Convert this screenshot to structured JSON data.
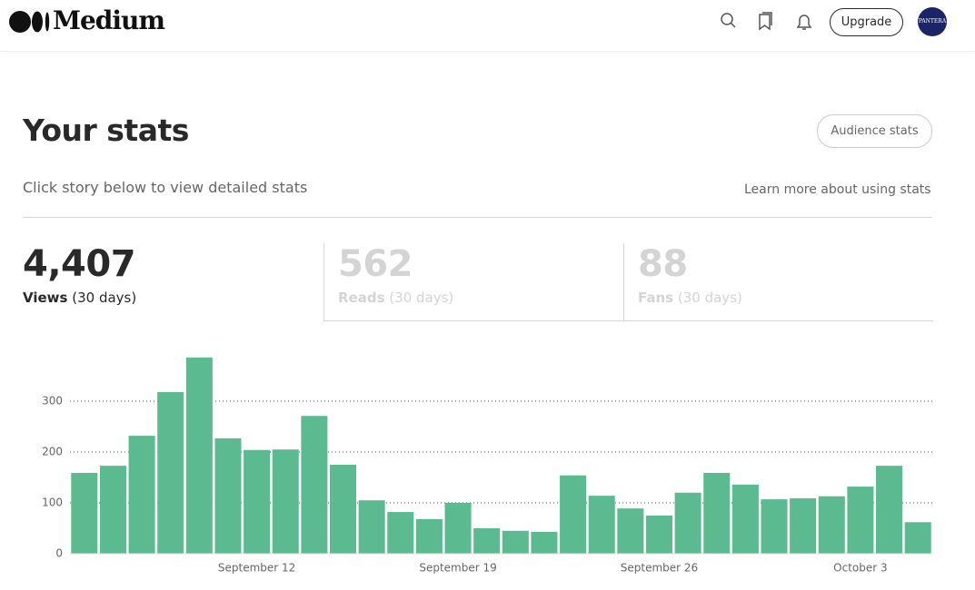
{
  "header": {
    "logo": "Medium",
    "button": "Upgrade",
    "avatar": "PANTERA"
  },
  "title": "Your stats",
  "audience_button": "Audience stats",
  "subtitle": "Click story below to view detailed stats",
  "learn_link": "Learn more about using stats",
  "stats": [
    {
      "value": "4,407",
      "label": "Views",
      "period": "(30 days)"
    },
    {
      "value": "562",
      "label": "Reads",
      "period": "(30 days)"
    },
    {
      "value": "88",
      "label": "Fans",
      "period": "(30 days)"
    }
  ],
  "chart_data": {
    "type": "bar",
    "categories": [
      null,
      null,
      null,
      null,
      null,
      null,
      "September 12",
      null,
      null,
      null,
      null,
      null,
      null,
      "September 19",
      null,
      null,
      null,
      null,
      null,
      null,
      "September 26",
      null,
      null,
      null,
      null,
      null,
      null,
      "October 3",
      null,
      null
    ],
    "values": [
      159,
      173,
      232,
      318,
      386,
      227,
      204,
      205,
      271,
      175,
      105,
      82,
      68,
      100,
      50,
      45,
      43,
      154,
      114,
      89,
      75,
      120,
      159,
      136,
      107,
      109,
      113,
      132,
      173,
      62
    ],
    "color": "#5bba8f",
    "ylim": [
      0,
      400
    ],
    "yticks": [
      0,
      100,
      200,
      300
    ],
    "grid": true
  }
}
